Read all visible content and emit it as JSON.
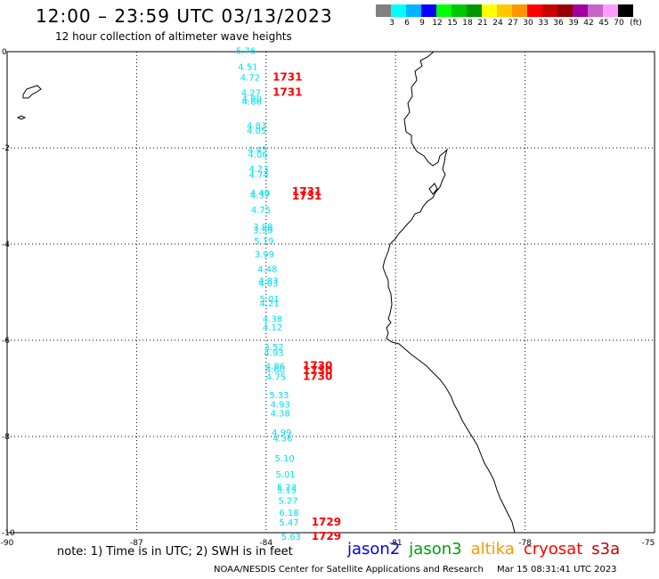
{
  "header": {
    "title": "12:00 – 23:59 UTC 03/13/2023",
    "subtitle": "12 hour collection of altimeter wave heights"
  },
  "legend": {
    "unit": "(ft)",
    "colors": [
      "#808080",
      "#00ffff",
      "#00b4ff",
      "#0000ff",
      "#00ff00",
      "#00c800",
      "#009600",
      "#ffff00",
      "#ffc800",
      "#ff9600",
      "#ff0000",
      "#c80000",
      "#960000",
      "#a000a0",
      "#c864c8",
      "#ff9cff",
      "#000000"
    ],
    "labels": [
      "3",
      "6",
      "9",
      "12",
      "15",
      "18",
      "21",
      "24",
      "27",
      "30",
      "33",
      "36",
      "39",
      "42",
      "45",
      "70"
    ]
  },
  "map": {
    "x_ticks": [
      "-90",
      "-87",
      "-84",
      "-81",
      "-78",
      "-75"
    ],
    "y_ticks": [
      "0",
      "-2",
      "-4",
      "-6",
      "-8",
      "-10"
    ],
    "wave_heights": [
      {
        "lat": -0.05,
        "lon": -84.7,
        "value": "5.76"
      },
      {
        "lat": -0.38,
        "lon": -84.65,
        "value": "4.51"
      },
      {
        "lat": -0.6,
        "lon": -84.6,
        "value": "4.72"
      },
      {
        "lat": -0.92,
        "lon": -84.58,
        "value": "4.27"
      },
      {
        "lat": -1.05,
        "lon": -84.56,
        "value": "4.90"
      },
      {
        "lat": -1.1,
        "lon": -84.56,
        "value": "4.86"
      },
      {
        "lat": -1.6,
        "lon": -84.45,
        "value": "4.83"
      },
      {
        "lat": -1.7,
        "lon": -84.45,
        "value": "4.05"
      },
      {
        "lat": -2.1,
        "lon": -84.43,
        "value": "4.45"
      },
      {
        "lat": -2.2,
        "lon": -84.42,
        "value": "4.06"
      },
      {
        "lat": -2.5,
        "lon": -84.4,
        "value": "4.23"
      },
      {
        "lat": -2.62,
        "lon": -84.4,
        "value": "4.74"
      },
      {
        "lat": -3.0,
        "lon": -84.37,
        "value": "4.40"
      },
      {
        "lat": -3.05,
        "lon": -84.37,
        "value": "4.37"
      },
      {
        "lat": -3.35,
        "lon": -84.35,
        "value": "4.75"
      },
      {
        "lat": -3.7,
        "lon": -84.3,
        "value": "3.98"
      },
      {
        "lat": -3.78,
        "lon": -84.3,
        "value": "3.99"
      },
      {
        "lat": -4.0,
        "lon": -84.28,
        "value": "5.19"
      },
      {
        "lat": -4.28,
        "lon": -84.27,
        "value": "3.99"
      },
      {
        "lat": -4.58,
        "lon": -84.2,
        "value": "4.48"
      },
      {
        "lat": -4.82,
        "lon": -84.18,
        "value": "4.83"
      },
      {
        "lat": -4.88,
        "lon": -84.18,
        "value": "4.03"
      },
      {
        "lat": -5.2,
        "lon": -84.15,
        "value": "5.01"
      },
      {
        "lat": -5.3,
        "lon": -84.15,
        "value": "4.21"
      },
      {
        "lat": -5.62,
        "lon": -84.08,
        "value": "4.38"
      },
      {
        "lat": -5.8,
        "lon": -84.08,
        "value": "4.12"
      },
      {
        "lat": -6.2,
        "lon": -84.05,
        "value": "3.52"
      },
      {
        "lat": -6.32,
        "lon": -84.05,
        "value": "4.93"
      },
      {
        "lat": -6.6,
        "lon": -84.02,
        "value": "4.86"
      },
      {
        "lat": -6.68,
        "lon": -84.02,
        "value": "4.60"
      },
      {
        "lat": -6.82,
        "lon": -84.0,
        "value": "4.75"
      },
      {
        "lat": -7.2,
        "lon": -83.93,
        "value": "5.33"
      },
      {
        "lat": -7.4,
        "lon": -83.9,
        "value": "4.93"
      },
      {
        "lat": -7.58,
        "lon": -83.9,
        "value": "4.38"
      },
      {
        "lat": -7.98,
        "lon": -83.87,
        "value": "4.99"
      },
      {
        "lat": -8.1,
        "lon": -83.85,
        "value": "4.36"
      },
      {
        "lat": -8.52,
        "lon": -83.8,
        "value": "5.10"
      },
      {
        "lat": -8.85,
        "lon": -83.78,
        "value": "5.01"
      },
      {
        "lat": -9.12,
        "lon": -83.75,
        "value": "5.23"
      },
      {
        "lat": -9.18,
        "lon": -83.75,
        "value": "5.15"
      },
      {
        "lat": -9.4,
        "lon": -83.72,
        "value": "5.27"
      },
      {
        "lat": -9.65,
        "lon": -83.7,
        "value": "6.18"
      },
      {
        "lat": -9.85,
        "lon": -83.7,
        "value": "5.47"
      },
      {
        "lat": -10.15,
        "lon": -83.65,
        "value": "5.63"
      }
    ],
    "time_labels": [
      {
        "lat": -0.6,
        "lon": -83.85,
        "value": "1731"
      },
      {
        "lat": -0.92,
        "lon": -83.85,
        "value": "1731"
      },
      {
        "lat": -2.98,
        "lon": -83.4,
        "value": "1731"
      },
      {
        "lat": -3.07,
        "lon": -83.4,
        "value": "1731"
      },
      {
        "lat": -6.6,
        "lon": -83.15,
        "value": "1730"
      },
      {
        "lat": -6.7,
        "lon": -83.15,
        "value": "1730"
      },
      {
        "lat": -6.82,
        "lon": -83.15,
        "value": "1730"
      },
      {
        "lat": -9.85,
        "lon": -82.95,
        "value": "1729"
      },
      {
        "lat": -10.15,
        "lon": -82.95,
        "value": "1729"
      }
    ],
    "wave_color": "#00e0f0",
    "time_color": "#ff0000"
  },
  "footer": {
    "note": "note: 1) Time is in UTC; 2) SWH is in feet",
    "satellites": [
      {
        "name": "jason2",
        "color": "#0000ff"
      },
      {
        "name": "jason3",
        "color": "#00a000"
      },
      {
        "name": "altika",
        "color": "#ff9600"
      },
      {
        "name": "cryosat",
        "color": "#ff0000"
      },
      {
        "name": "s3a",
        "color": "#c80000"
      }
    ],
    "credit": "NOAA/NESDIS Center for Satellite Applications and Research",
    "timestamp": "Mar 15 08:31:41 UTC 2023"
  }
}
